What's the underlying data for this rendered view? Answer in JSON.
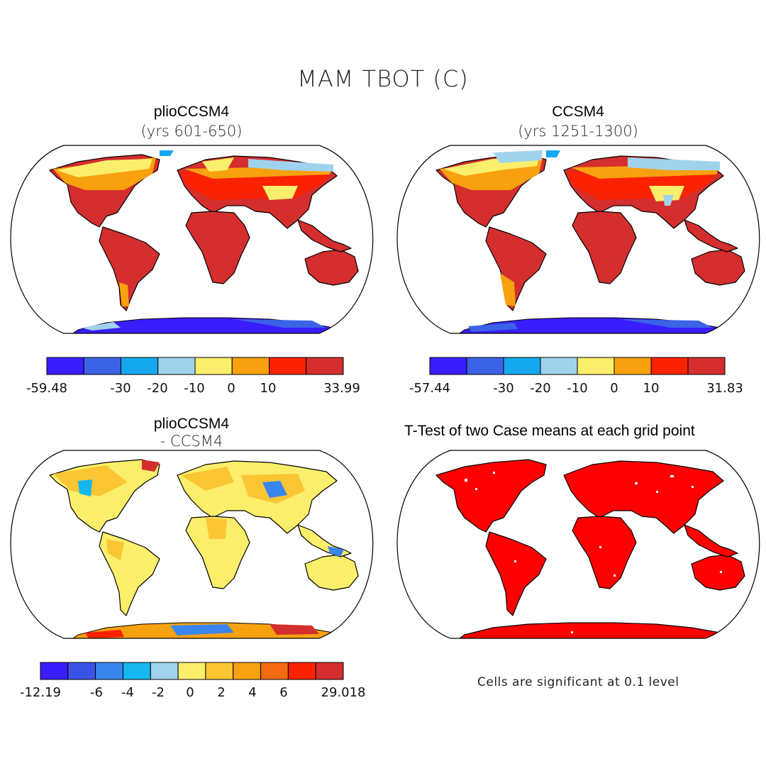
{
  "title": "MAM TBOT (C)",
  "panels": [
    {
      "id": "plio",
      "title": "plioCCSM4",
      "subtitle": "(yrs 601-650)"
    },
    {
      "id": "ccsm",
      "title": "CCSM4",
      "subtitle": "(yrs 1251-1300)"
    },
    {
      "id": "diff",
      "title": "plioCCSM4",
      "subtitle": "- CCSM4"
    },
    {
      "id": "ttest",
      "title": "T-Test of two Case means at each grid point",
      "subtitle": ""
    }
  ],
  "colorbars": [
    {
      "id": "cb1",
      "colors": [
        "#3a1dff",
        "#3a63e6",
        "#16a8ef",
        "#9fd3ed",
        "#fbee6a",
        "#f8a10f",
        "#fa2200",
        "#d42e2e"
      ],
      "labels": [
        "-59.48",
        "-30",
        "-20",
        "-10",
        "0",
        "10",
        "33.99"
      ]
    },
    {
      "id": "cb2",
      "colors": [
        "#3a1dff",
        "#3a63e6",
        "#16a8ef",
        "#9fd3ed",
        "#fbee6a",
        "#f8a10f",
        "#fa2200",
        "#d42e2e"
      ],
      "labels": [
        "-57.44",
        "-30",
        "-20",
        "-10",
        "0",
        "10",
        "31.83"
      ]
    },
    {
      "id": "cb3",
      "colors": [
        "#3a1dff",
        "#3a53e6",
        "#3a86ef",
        "#16b7ef",
        "#9fd3ed",
        "#fbee6a",
        "#fbc534",
        "#f8a10f",
        "#f56a10",
        "#fa2200",
        "#d42e2e"
      ],
      "labels": [
        "-12.19",
        "-6",
        "-4",
        "-2",
        "0",
        "2",
        "4",
        "6",
        "29.018"
      ]
    }
  ],
  "note": "Cells are significant at 0.1 level",
  "colors": {
    "warm": "#d42e2e",
    "orange": "#f8a10f",
    "yellow": "#fbee6a",
    "lightblue": "#9fd3ed",
    "blue": "#3a1dff",
    "sig": "#ff0000"
  }
}
